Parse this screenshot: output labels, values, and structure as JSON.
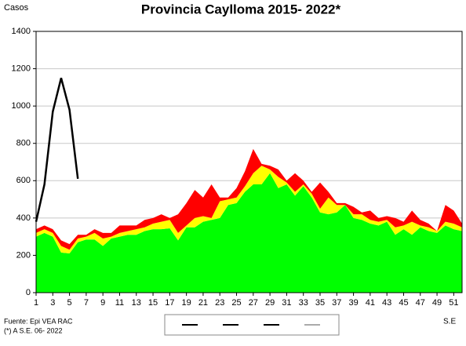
{
  "chart_data": {
    "type": "stacked-area-line",
    "title": "Provincia Caylloma 2015- 2022*",
    "y_label": "Casos",
    "x_label": "S.E",
    "source": "Fuente: Epi VEA RAC",
    "note": "(*) A S.E. 06- 2022",
    "x": [
      1,
      2,
      3,
      4,
      5,
      6,
      7,
      8,
      9,
      10,
      11,
      12,
      13,
      14,
      15,
      16,
      17,
      18,
      19,
      20,
      21,
      22,
      23,
      24,
      25,
      26,
      27,
      28,
      29,
      30,
      31,
      32,
      33,
      34,
      35,
      36,
      37,
      38,
      39,
      40,
      41,
      42,
      43,
      44,
      45,
      46,
      47,
      48,
      49,
      50,
      51,
      52
    ],
    "xlim": [
      1,
      52
    ],
    "xticks": [
      1,
      3,
      5,
      7,
      9,
      11,
      13,
      15,
      17,
      19,
      21,
      23,
      25,
      27,
      29,
      31,
      33,
      35,
      37,
      39,
      41,
      43,
      45,
      47,
      49,
      51
    ],
    "ylim": [
      0,
      1400
    ],
    "yticks": [
      0,
      200,
      400,
      600,
      800,
      1000,
      1200,
      1400
    ],
    "grid": true,
    "series": [
      {
        "kind": "area",
        "color": "#00ff00",
        "values": [
          300,
          320,
          300,
          215,
          210,
          270,
          285,
          285,
          250,
          290,
          300,
          310,
          310,
          330,
          340,
          340,
          345,
          280,
          350,
          350,
          380,
          390,
          400,
          470,
          480,
          540,
          580,
          580,
          640,
          560,
          580,
          520,
          570,
          510,
          430,
          420,
          430,
          470,
          400,
          390,
          370,
          360,
          380,
          310,
          340,
          310,
          350,
          330,
          320,
          360,
          340,
          330
        ]
      },
      {
        "kind": "area",
        "color": "#ffff00",
        "values": [
          20,
          20,
          20,
          35,
          20,
          20,
          15,
          35,
          40,
          10,
          20,
          20,
          30,
          20,
          30,
          40,
          45,
          40,
          10,
          50,
          30,
          10,
          90,
          30,
          30,
          30,
          60,
          100,
          20,
          60,
          10,
          20,
          10,
          20,
          20,
          90,
          40,
          0,
          20,
          30,
          20,
          20,
          10,
          40,
          20,
          70,
          10,
          20,
          10,
          20,
          30,
          20
        ]
      },
      {
        "kind": "area",
        "color": "#ff0000",
        "values": [
          20,
          20,
          20,
          30,
          30,
          20,
          10,
          20,
          30,
          20,
          40,
          30,
          20,
          40,
          30,
          40,
          10,
          100,
          120,
          150,
          100,
          180,
          20,
          10,
          50,
          80,
          130,
          10,
          20,
          40,
          10,
          100,
          20,
          10,
          140,
          30,
          10,
          10,
          40,
          10,
          50,
          20,
          20,
          50,
          20,
          60,
          30,
          20,
          0,
          90,
          70,
          20
        ]
      },
      {
        "kind": "line",
        "color": "#000000",
        "values": [
          380,
          580,
          970,
          1150,
          980,
          610,
          null,
          null,
          null,
          null,
          null,
          null,
          null,
          null,
          null,
          null,
          null,
          null,
          null,
          null,
          null,
          null,
          null,
          null,
          null,
          null,
          null,
          null,
          null,
          null,
          null,
          null,
          null,
          null,
          null,
          null,
          null,
          null,
          null,
          null,
          null,
          null,
          null,
          null,
          null,
          null,
          null,
          null,
          null,
          null,
          null,
          null
        ]
      }
    ]
  }
}
